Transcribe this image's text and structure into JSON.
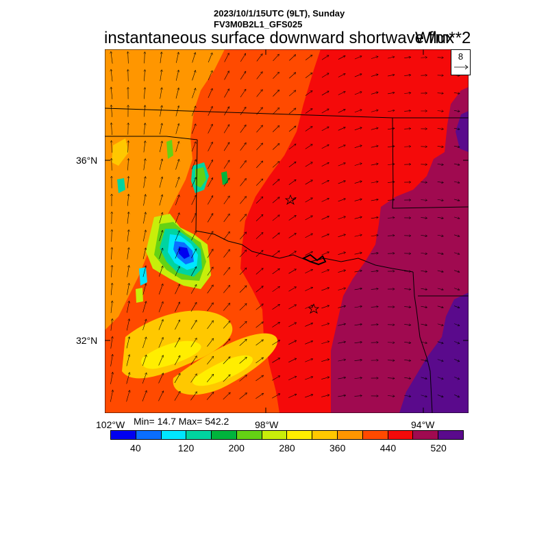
{
  "header": {
    "datetime_line": "2023/10/1/15UTC (9LT), Sunday",
    "model_line": "FV3M0B2L1_GFS025",
    "title": "instantaneous surface downward shortwave flux",
    "units": "W/m**2"
  },
  "reference_vector": {
    "value": "8"
  },
  "axes": {
    "lat_labels": [
      "36°N",
      "32°N"
    ],
    "lon_labels": [
      "102°W",
      "98°W",
      "94°W"
    ]
  },
  "stats": {
    "text": "Min= 14.7 Max= 542.2"
  },
  "colorbar": {
    "colors": [
      "#0000f0",
      "#0a6eff",
      "#00e6ff",
      "#00d4a0",
      "#00b43c",
      "#64d214",
      "#c8ee0a",
      "#ffee00",
      "#ffc800",
      "#ff9600",
      "#ff4a00",
      "#f50a0a",
      "#a00a50",
      "#5a0a8c"
    ],
    "labels": [
      "40",
      "120",
      "200",
      "280",
      "360",
      "440",
      "520"
    ]
  },
  "map": {
    "markers": [
      "star",
      "star"
    ]
  }
}
